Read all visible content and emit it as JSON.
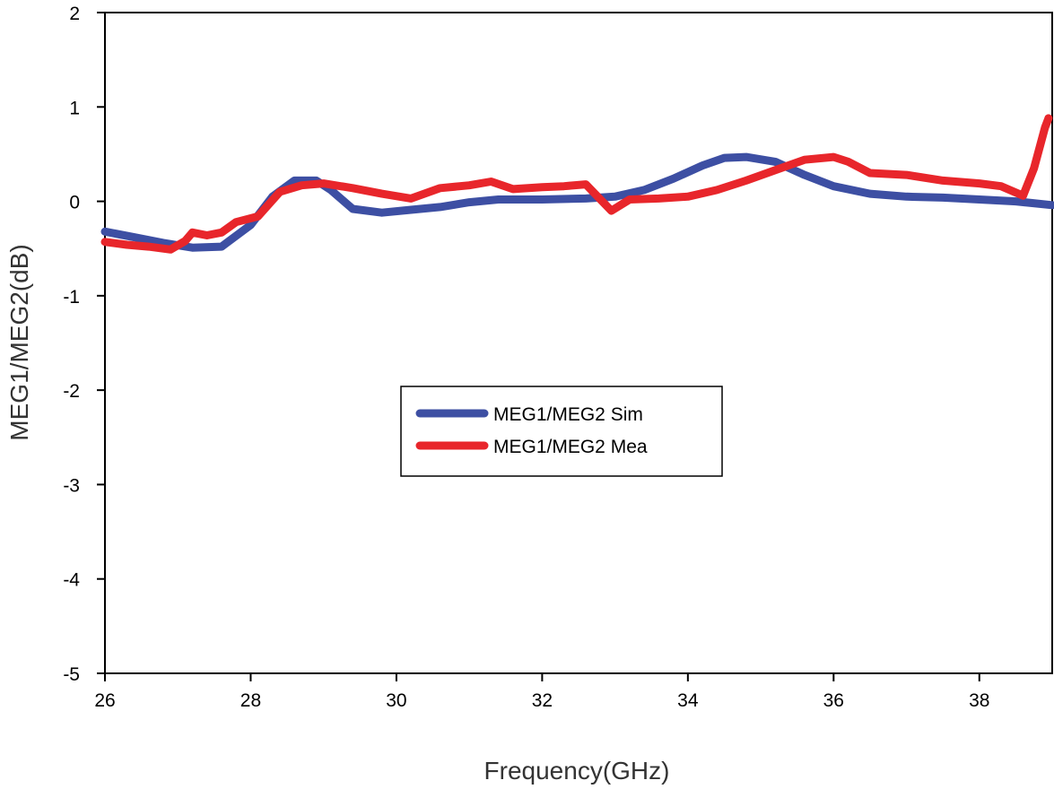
{
  "chart_data": {
    "type": "line",
    "xlabel": "Frequency(GHz)",
    "ylabel": "MEG1/MEG2(dB)",
    "xlim": [
      26,
      39
    ],
    "ylim": [
      -5,
      2
    ],
    "xticks": [
      26,
      28,
      30,
      32,
      34,
      36,
      38
    ],
    "yticks": [
      -5,
      -4,
      -3,
      -2,
      -1,
      0,
      1,
      2
    ],
    "grid": false,
    "legend_position": "center",
    "series": [
      {
        "name": "MEG1/MEG2 Sim",
        "color": "#3d4fa3",
        "points": [
          [
            26.0,
            -0.32
          ],
          [
            26.4,
            -0.38
          ],
          [
            26.8,
            -0.44
          ],
          [
            27.2,
            -0.49
          ],
          [
            27.6,
            -0.48
          ],
          [
            28.0,
            -0.25
          ],
          [
            28.3,
            0.05
          ],
          [
            28.6,
            0.22
          ],
          [
            28.9,
            0.22
          ],
          [
            29.1,
            0.12
          ],
          [
            29.4,
            -0.08
          ],
          [
            29.8,
            -0.12
          ],
          [
            30.2,
            -0.09
          ],
          [
            30.6,
            -0.06
          ],
          [
            31.0,
            -0.01
          ],
          [
            31.4,
            0.02
          ],
          [
            32.0,
            0.02
          ],
          [
            32.6,
            0.03
          ],
          [
            33.0,
            0.05
          ],
          [
            33.4,
            0.12
          ],
          [
            33.8,
            0.24
          ],
          [
            34.2,
            0.38
          ],
          [
            34.5,
            0.46
          ],
          [
            34.8,
            0.47
          ],
          [
            35.2,
            0.42
          ],
          [
            35.6,
            0.28
          ],
          [
            36.0,
            0.16
          ],
          [
            36.5,
            0.08
          ],
          [
            37.0,
            0.05
          ],
          [
            37.5,
            0.04
          ],
          [
            38.0,
            0.02
          ],
          [
            38.5,
            0.0
          ],
          [
            39.0,
            -0.04
          ]
        ]
      },
      {
        "name": "MEG1/MEG2 Mea",
        "color": "#e8262b",
        "points": [
          [
            26.0,
            -0.43
          ],
          [
            26.3,
            -0.46
          ],
          [
            26.6,
            -0.48
          ],
          [
            26.9,
            -0.51
          ],
          [
            27.1,
            -0.42
          ],
          [
            27.2,
            -0.33
          ],
          [
            27.4,
            -0.36
          ],
          [
            27.6,
            -0.33
          ],
          [
            27.8,
            -0.22
          ],
          [
            28.1,
            -0.16
          ],
          [
            28.4,
            0.1
          ],
          [
            28.7,
            0.17
          ],
          [
            29.0,
            0.19
          ],
          [
            29.4,
            0.14
          ],
          [
            29.8,
            0.08
          ],
          [
            30.2,
            0.03
          ],
          [
            30.6,
            0.14
          ],
          [
            31.0,
            0.17
          ],
          [
            31.3,
            0.21
          ],
          [
            31.6,
            0.13
          ],
          [
            32.0,
            0.15
          ],
          [
            32.3,
            0.16
          ],
          [
            32.6,
            0.18
          ],
          [
            32.8,
            0.02
          ],
          [
            32.95,
            -0.1
          ],
          [
            33.2,
            0.02
          ],
          [
            33.6,
            0.03
          ],
          [
            34.0,
            0.05
          ],
          [
            34.4,
            0.12
          ],
          [
            34.8,
            0.22
          ],
          [
            35.2,
            0.33
          ],
          [
            35.6,
            0.44
          ],
          [
            36.0,
            0.47
          ],
          [
            36.2,
            0.42
          ],
          [
            36.5,
            0.3
          ],
          [
            37.0,
            0.28
          ],
          [
            37.5,
            0.22
          ],
          [
            38.0,
            0.19
          ],
          [
            38.3,
            0.16
          ],
          [
            38.6,
            0.06
          ],
          [
            38.75,
            0.35
          ],
          [
            38.9,
            0.78
          ],
          [
            38.95,
            0.88
          ]
        ]
      }
    ]
  }
}
